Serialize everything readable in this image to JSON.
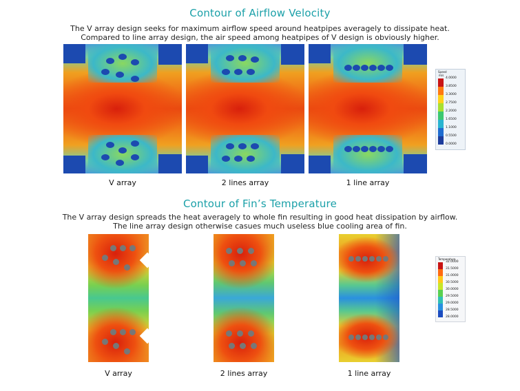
{
  "section1": {
    "title": "Contour of Airflow Velocity",
    "line1": "The V array design seeks for maximum airflow speed around heatpipes averagely to dissipate heat.",
    "line2": "Compared to line array design, the air speed among heatpipes of V design is obviously higher.",
    "captions": [
      "V array",
      "2 lines array",
      "1 line array"
    ],
    "legend": {
      "header1": "Speed",
      "header2": "m/s",
      "ticks": [
        "4.0000",
        "3.8500",
        "3.3000",
        "2.7500",
        "2.2000",
        "1.6500",
        "1.1000",
        "0.5500",
        "0.0000"
      ],
      "colors": [
        "#c81414",
        "#ff7a10",
        "#ffd21a",
        "#a8e030",
        "#3cc870",
        "#28b4d0",
        "#1e6cd0",
        "#1c3c9c"
      ]
    }
  },
  "section2": {
    "title": "Contour of Fin’s Temperature",
    "line1": "The V array design spreads the heat averagely to whole fin resulting in good heat dissipation by airflow.",
    "line2": "The line array design otherwise casues much useless blue cooling area of fin.",
    "captions": [
      "V array",
      "2 lines array",
      "1 line array"
    ],
    "legend": {
      "header1": "Temperature",
      "ticks": [
        "32.0000",
        "31.5000",
        "31.0000",
        "30.5000",
        "30.0000",
        "29.5000",
        "29.0000",
        "28.5000",
        "28.0000"
      ],
      "colors": [
        "#c81414",
        "#ff6a10",
        "#ffc81a",
        "#c8e628",
        "#58d050",
        "#30c0b4",
        "#2890e0",
        "#1c4cc0"
      ]
    }
  }
}
